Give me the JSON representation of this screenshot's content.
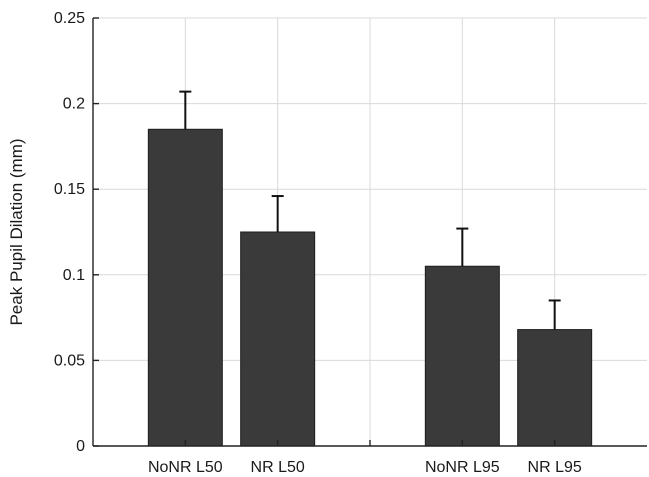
{
  "chart_data": {
    "type": "bar",
    "title": "",
    "xlabel": "",
    "ylabel": "Peak Pupil Dilation (mm)",
    "ylim": [
      0,
      0.25
    ],
    "yticks": [
      0,
      0.05,
      0.1,
      0.15,
      0.2,
      0.25
    ],
    "ytick_labels": [
      "0",
      "0.05",
      "0.1",
      "0.15",
      "0.2",
      "0.25"
    ],
    "x_positions": [
      1,
      2,
      4,
      5
    ],
    "xlim": [
      0,
      6
    ],
    "categories": [
      "NoNR L50",
      "NR L50",
      "NoNR L95",
      "NR L95"
    ],
    "values": [
      0.185,
      0.125,
      0.105,
      0.068
    ],
    "error_upper": [
      0.207,
      0.146,
      0.127,
      0.085
    ],
    "grid": true,
    "bar_color": "#3a3a3a",
    "error_color": "#111111"
  }
}
